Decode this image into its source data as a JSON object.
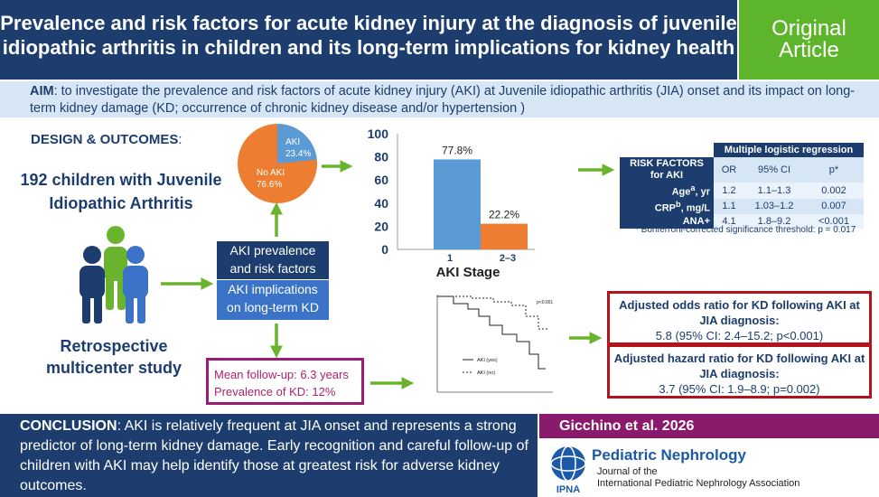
{
  "header": {
    "title_line1": "Prevalence and risk factors for acute kidney injury at the diagnosis of juvenile",
    "title_line2": "idiopathic arthritis in children and its long-term implications for kidney health",
    "badge_line1": "Original",
    "badge_line2": "Article"
  },
  "aim": {
    "label": "AIM",
    "text": ": to investigate the prevalence and risk factors of acute kidney injury (AKI) at Juvenile idiopathic arthritis (JIA) onset and its impact on long-term kidney damage (KD; occurrence of chronic kidney disease and/or hypertension )"
  },
  "design": {
    "label": "DESIGN & OUTCOMES",
    "colon": ":",
    "children_line1": "192 children with Juvenile",
    "children_line2": "Idiopathic Arthritis",
    "study_line1": "Retrospective",
    "study_line2": "multicenter study"
  },
  "pie": {
    "aki_label": "AKI",
    "aki_value": "23.4%",
    "noaki_label": "No AKI",
    "noaki_value": "76.6%",
    "aki_fraction": 0.234,
    "colors": {
      "aki": "#5b9bd5",
      "noaki": "#ed7d31"
    }
  },
  "boxes": {
    "prevalence_line1": "AKI prevalence",
    "prevalence_line2": "and risk factors",
    "implications_line1": "AKI implications",
    "implications_line2": "on long-term KD",
    "followup": "Mean follow-up: 6.3 years",
    "prevalence_kd": "Prevalence of KD: 12%"
  },
  "chart_data": {
    "type": "bar",
    "categories": [
      "1",
      "2–3"
    ],
    "values": [
      77.8,
      22.2
    ],
    "data_labels": [
      "77.8%",
      "22.2%"
    ],
    "colors": [
      "#5b9bd5",
      "#ed7d31"
    ],
    "xlabel": "AKI Stage",
    "ylim": [
      0,
      100
    ],
    "yticks": [
      "0",
      "20",
      "40",
      "60",
      "80",
      "100"
    ]
  },
  "table": {
    "header_group": "Multiple logistic regression",
    "header_rf": "RISK FACTORS for AKI",
    "col_or": "OR",
    "col_ci": "95% CI",
    "col_p": "p*",
    "rows": [
      {
        "label": "Age",
        "sup": "a",
        "unit": ", yr",
        "or": "1.2",
        "ci": "1.1–1.3",
        "p": "0.002"
      },
      {
        "label": "CRP",
        "sup": "b",
        "unit": ", mg/L",
        "or": "1.1",
        "ci": "1.03–1.2",
        "p": "0.007"
      },
      {
        "label": "ANA+",
        "sup": "",
        "unit": "",
        "or": "4.1",
        "ci": "1.8–9.2",
        "p": "<0.001"
      }
    ],
    "footnote": "* Bonferroni-corrected significance threshold: p = 0.017"
  },
  "km": {
    "legend_yes": "AKI (yes)",
    "legend_no": "AKI (no)",
    "pval": "p<0.001"
  },
  "results": {
    "or_title": "Adjusted odds ratio for KD following AKI at JIA diagnosis:",
    "or_value": "5.8 (95% CI: 2.4–15.2; p<0.001)",
    "hr_title": "Adjusted hazard ratio for KD following AKI at JIA diagnosis:",
    "hr_value": "3.7 (95% CI: 1.9–8.9; p=0.002)"
  },
  "conclusion": {
    "label": "CONCLUSION",
    "text": ": AKI is relatively frequent at JIA onset and represents a strong predictor of long-term kidney damage. Early recognition and careful follow-up of children with AKI may help identify those at greatest risk for adverse kidney outcomes."
  },
  "citation": "Gicchino et al. 2026",
  "journal": {
    "name": "Pediatric Nephrology",
    "sub1": "Journal of the",
    "sub2": "International Pediatric Nephrology Association",
    "logo_text": "IPNA"
  },
  "colors": {
    "navy": "#1c3d6e",
    "green": "#5cb52a",
    "arrow": "#6ab42d",
    "plum": "#8a1a6b",
    "red": "#b5121b"
  }
}
